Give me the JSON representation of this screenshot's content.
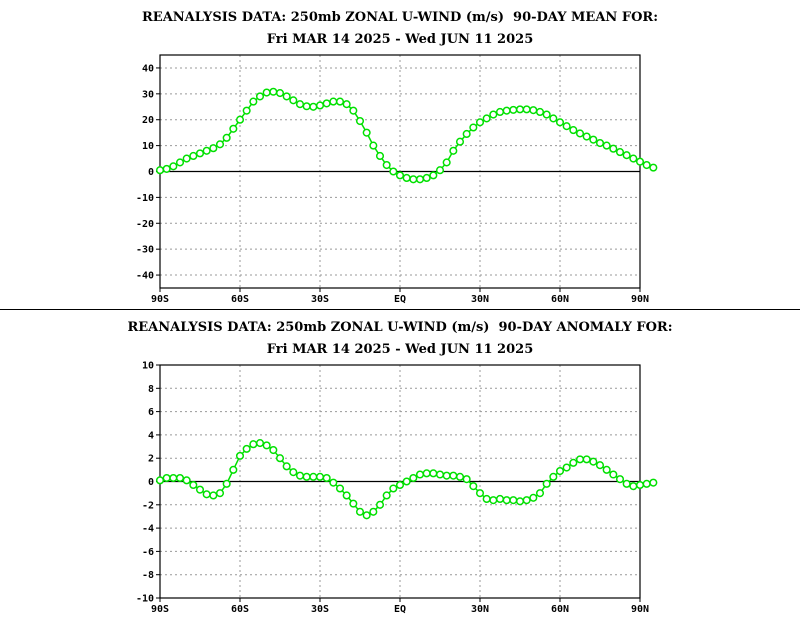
{
  "chart_data": [
    {
      "type": "line",
      "title": "REANALYSIS DATA: 250mb ZONAL U-WIND (m/s)  90-DAY MEAN FOR:",
      "subtitle": "Fri MAR 14 2025 - Wed JUN 11 2025",
      "xlabel": "",
      "ylabel": "",
      "xlim": [
        -90,
        90
      ],
      "ylim": [
        -45,
        45
      ],
      "x_ticks": [
        -90,
        -60,
        -30,
        0,
        30,
        60,
        90
      ],
      "x_tick_labels": [
        "90S",
        "60S",
        "30S",
        "EQ",
        "30N",
        "60N",
        "90N"
      ],
      "y_ticks": [
        -40,
        -30,
        -20,
        -10,
        0,
        10,
        20,
        30,
        40
      ],
      "y_tick_labels": [
        "-40",
        "-30",
        "-20",
        "-10",
        "0",
        "10",
        "20",
        "30",
        "40"
      ],
      "grid": true,
      "line_color": "#00e000",
      "marker": "open-circle",
      "x_step": 2.5,
      "series": [
        {
          "values": [
            0.5,
            1,
            2,
            3.5,
            5,
            6,
            7,
            8,
            9,
            10.5,
            13,
            16.5,
            20,
            23.5,
            27,
            29,
            30.5,
            30.8,
            30.3,
            29,
            27.5,
            26,
            25.2,
            25,
            25.5,
            26.3,
            27,
            27,
            26,
            23.5,
            19.5,
            15,
            10,
            6,
            2.5,
            0,
            -1.5,
            -2.5,
            -3,
            -3,
            -2.5,
            -1.5,
            0.5,
            3.5,
            8,
            11.5,
            14.5,
            17,
            19,
            20.5,
            22,
            23,
            23.5,
            23.8,
            24,
            24,
            23.7,
            23,
            22,
            20.5,
            19,
            17.5,
            16,
            14.7,
            13.5,
            12.3,
            11,
            10,
            8.8,
            7.5,
            6.3,
            5,
            3.8,
            2.5,
            1.5
          ]
        }
      ]
    },
    {
      "type": "line",
      "title": "REANALYSIS DATA: 250mb ZONAL U-WIND (m/s)  90-DAY ANOMALY FOR:",
      "subtitle": "Fri MAR 14 2025 - Wed JUN 11 2025",
      "xlabel": "",
      "ylabel": "",
      "xlim": [
        -90,
        90
      ],
      "ylim": [
        -10,
        10
      ],
      "x_ticks": [
        -90,
        -60,
        -30,
        0,
        30,
        60,
        90
      ],
      "x_tick_labels": [
        "90S",
        "60S",
        "30S",
        "EQ",
        "30N",
        "60N",
        "90N"
      ],
      "y_ticks": [
        -10,
        -8,
        -6,
        -4,
        -2,
        0,
        2,
        4,
        6,
        8,
        10
      ],
      "y_tick_labels": [
        "-10",
        "-8",
        "-6",
        "-4",
        "-2",
        "0",
        "2",
        "4",
        "6",
        "8",
        "10"
      ],
      "grid": true,
      "line_color": "#00e000",
      "marker": "open-circle",
      "x_step": 2.5,
      "series": [
        {
          "values": [
            0.1,
            0.3,
            0.3,
            0.3,
            0.1,
            -0.3,
            -0.7,
            -1.1,
            -1.2,
            -1.0,
            -0.2,
            1.0,
            2.2,
            2.8,
            3.2,
            3.3,
            3.1,
            2.7,
            2.0,
            1.3,
            0.8,
            0.5,
            0.4,
            0.4,
            0.4,
            0.3,
            -0.1,
            -0.6,
            -1.2,
            -1.9,
            -2.6,
            -2.9,
            -2.6,
            -2.0,
            -1.2,
            -0.6,
            -0.3,
            0.0,
            0.3,
            0.6,
            0.7,
            0.7,
            0.6,
            0.5,
            0.5,
            0.4,
            0.2,
            -0.4,
            -1.0,
            -1.5,
            -1.6,
            -1.5,
            -1.6,
            -1.6,
            -1.7,
            -1.6,
            -1.4,
            -1.0,
            -0.2,
            0.4,
            0.9,
            1.2,
            1.6,
            1.9,
            1.9,
            1.7,
            1.4,
            1.0,
            0.6,
            0.2,
            -0.2,
            -0.4,
            -0.3,
            -0.2,
            -0.1
          ]
        }
      ]
    }
  ]
}
